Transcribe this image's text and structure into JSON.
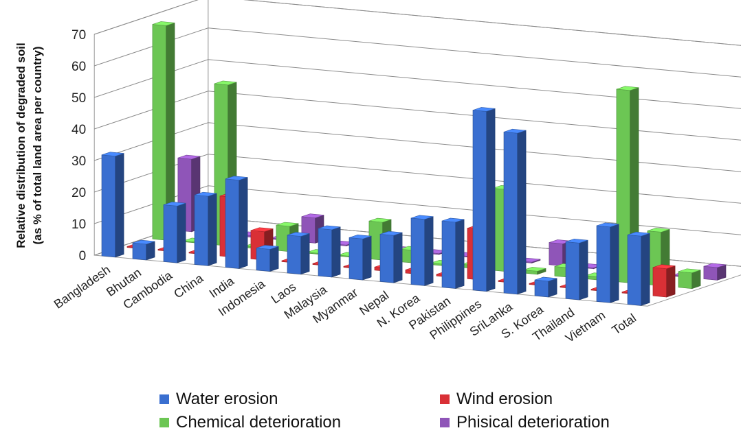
{
  "chart_data": {
    "type": "bar",
    "ylabel": "Relative distribution of degraded soil",
    "ylabel2": "(as % of total land area per country)",
    "ylim": [
      0,
      70
    ],
    "yticks": [
      0,
      10,
      20,
      30,
      40,
      50,
      60,
      70
    ],
    "categories": [
      "Bangladesh",
      "Bhutan",
      "Cambodia",
      "China",
      "India",
      "Indonesia",
      "Laos",
      "Malaysia",
      "Myanmar",
      "Nepal",
      "N. Korea",
      "Pakistan",
      "Philippines",
      "SriLanka",
      "S. Korea",
      "Thailand",
      "Vietnam",
      "Total"
    ],
    "series": [
      {
        "name": "Water erosion",
        "color": "#3a6fd0",
        "values": [
          32,
          5,
          18,
          22,
          28,
          7,
          12,
          15,
          13,
          15,
          21,
          21,
          57,
          51,
          5,
          18,
          24,
          22
        ]
      },
      {
        "name": "Wind erosion",
        "color": "#d93036",
        "values": [
          0.3,
          0.3,
          0.3,
          19,
          9,
          0.3,
          0.3,
          0.3,
          1,
          1,
          0.5,
          16,
          0.3,
          0.3,
          0.3,
          0.3,
          0.3,
          9
        ]
      },
      {
        "name": "Chemical deterioration",
        "color": "#6cc654",
        "values": [
          68,
          0.3,
          51,
          0.5,
          8,
          0.3,
          0.3,
          12,
          4,
          0.5,
          1,
          26,
          1,
          3,
          1,
          61,
          17,
          5
        ]
      },
      {
        "name": "Phisical deterioration",
        "color": "#8f55b8",
        "values": [
          23,
          0.3,
          0.5,
          0.3,
          8,
          0.3,
          0.3,
          0.3,
          0.3,
          0.3,
          0.3,
          0.3,
          7,
          0.3,
          0.3,
          0.3,
          0.3,
          4
        ]
      }
    ],
    "grid": true,
    "legend": "bottom"
  }
}
